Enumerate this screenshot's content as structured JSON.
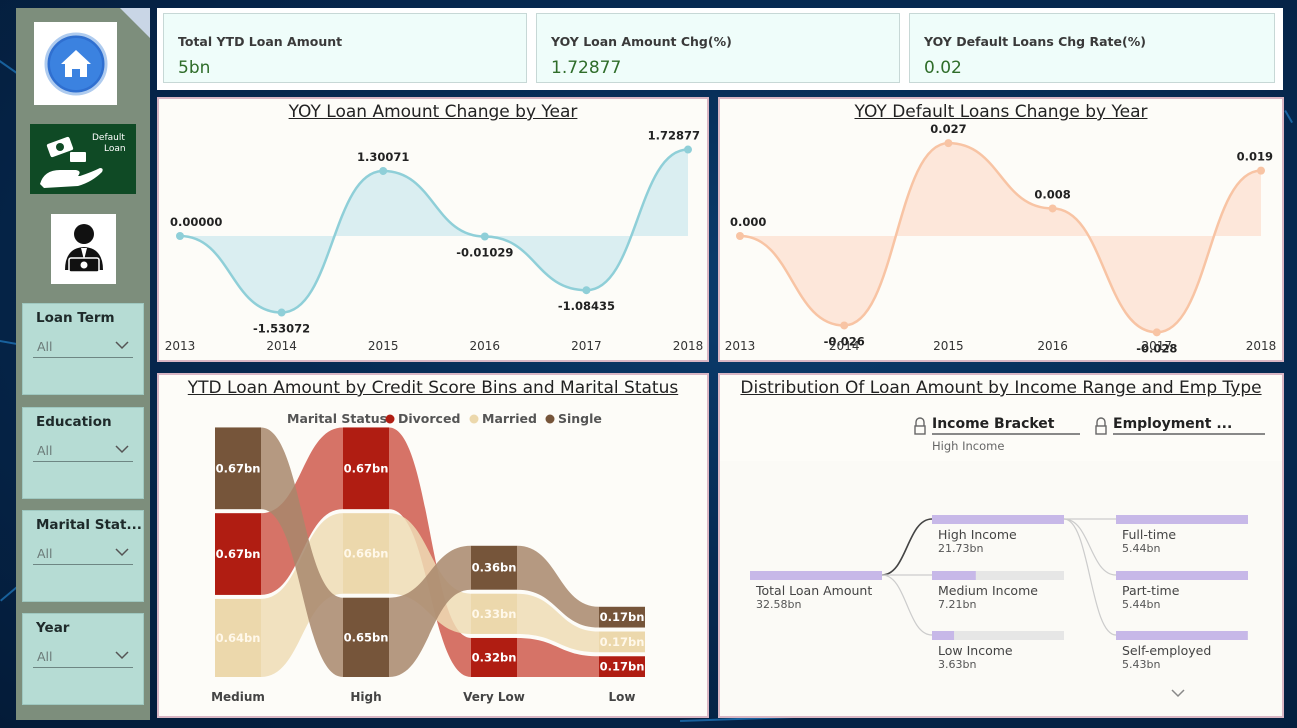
{
  "nav": {
    "default_loan_line1": "Default",
    "default_loan_line2": "Loan"
  },
  "slicers": [
    {
      "title": "Loan Term",
      "value": "All"
    },
    {
      "title": "Education",
      "value": "All"
    },
    {
      "title": "Marital Stat...",
      "value": "All"
    },
    {
      "title": "Year",
      "value": "All"
    }
  ],
  "kpis": [
    {
      "label": "Total YTD Loan Amount",
      "value": "5bn"
    },
    {
      "label": "YOY Loan Amount Chg(%)",
      "value": "1.72877"
    },
    {
      "label": "YOY Default Loans Chg Rate(%)",
      "value": "0.02"
    }
  ],
  "chart_data": [
    {
      "type": "area",
      "title": "YOY Loan Amount Change by Year",
      "categories": [
        "2013",
        "2014",
        "2015",
        "2016",
        "2017",
        "2018"
      ],
      "values": [
        0.0,
        -1.53072,
        1.30071,
        -0.01029,
        -1.08435,
        1.72877
      ],
      "data_labels": [
        "0.00000",
        "-1.53072",
        "1.30071",
        "-0.01029",
        "-1.08435",
        "1.72877"
      ],
      "color": "#8fcfd8",
      "fill": "#d6ecef"
    },
    {
      "type": "area",
      "title": "YOY Default Loans Change by Year",
      "categories": [
        "2013",
        "2014",
        "2015",
        "2016",
        "2017",
        "2018"
      ],
      "values": [
        0.0,
        -0.026,
        0.027,
        0.008,
        -0.028,
        0.019
      ],
      "data_labels": [
        "0.000",
        "-0.026",
        "0.027",
        "0.008",
        "-0.028",
        "0.019"
      ],
      "color": "#f8c4a4",
      "fill": "#fde4d6"
    },
    {
      "type": "ribbon",
      "title": "YTD Loan Amount by Credit Score Bins and Marital Status",
      "legend_title": "Marital Status",
      "legend": [
        {
          "name": "Divorced",
          "color": "#b01d12"
        },
        {
          "name": "Married",
          "color": "#ecd8ac"
        },
        {
          "name": "Single",
          "color": "#76553a"
        }
      ],
      "categories": [
        "Medium",
        "High",
        "Very Low",
        "Low"
      ],
      "series": [
        {
          "name": "Divorced",
          "values": [
            0.67,
            0.67,
            0.32,
            0.17
          ],
          "labels": [
            "0.67bn",
            "0.67bn",
            "0.32bn",
            "0.17bn"
          ]
        },
        {
          "name": "Married",
          "values": [
            0.64,
            0.66,
            0.33,
            0.17
          ],
          "labels": [
            "0.64bn",
            "0.66bn",
            "0.33bn",
            "0.17bn"
          ]
        },
        {
          "name": "Single",
          "values": [
            0.67,
            0.65,
            0.36,
            0.17
          ],
          "labels": [
            "0.67bn",
            "0.65bn",
            "0.36bn",
            "0.17bn"
          ]
        }
      ]
    },
    {
      "type": "decomposition_tree",
      "title": "Distribution Of Loan Amount by Income Range and Emp Type",
      "levels": [
        {
          "name": "Income Bracket",
          "selected": "High Income"
        },
        {
          "name": "Employment ..."
        }
      ],
      "root": {
        "label": "Total Loan Amount",
        "value": "32.58bn",
        "amount": 32.58
      },
      "income": [
        {
          "label": "High Income",
          "value": "21.73bn",
          "amount": 21.73
        },
        {
          "label": "Medium Income",
          "value": "7.21bn",
          "amount": 7.21
        },
        {
          "label": "Low Income",
          "value": "3.63bn",
          "amount": 3.63
        }
      ],
      "employment": [
        {
          "label": "Full-time",
          "value": "5.44bn",
          "amount": 5.44
        },
        {
          "label": "Part-time",
          "value": "5.44bn",
          "amount": 5.44
        },
        {
          "label": "Self-employed",
          "value": "5.43bn",
          "amount": 5.43
        }
      ]
    }
  ]
}
